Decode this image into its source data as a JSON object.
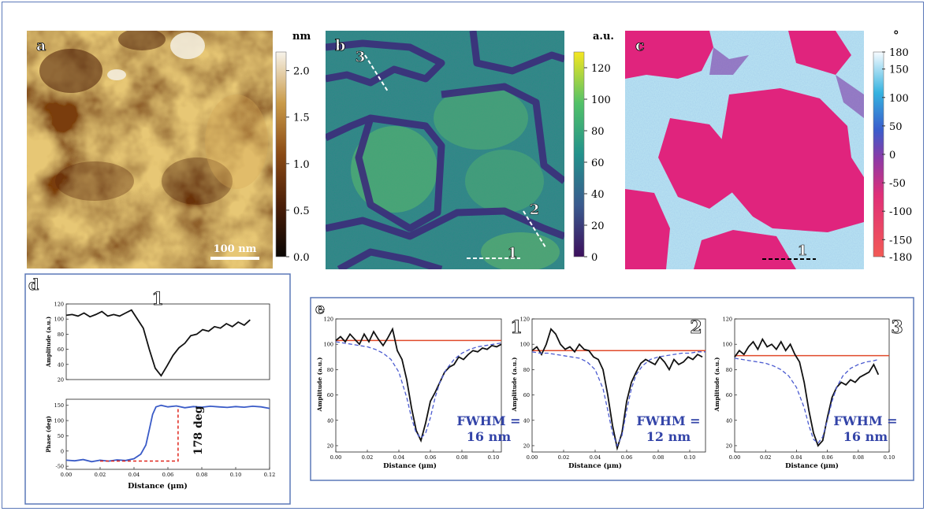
{
  "figure": {
    "panels": {
      "a": {
        "letter": "a",
        "unit": "nm",
        "colorbar_ticks": [
          "2.0",
          "1.5",
          "1.0",
          "0.5",
          "0.0"
        ],
        "colorbar_range": [
          0,
          2.2
        ],
        "scalebar": "100 nm"
      },
      "b": {
        "letter": "b",
        "unit": "a.u.",
        "colorbar_ticks": [
          "120",
          "100",
          "80",
          "60",
          "40",
          "20",
          "0"
        ],
        "colorbar_range": [
          0,
          130
        ],
        "line_labels": [
          "1",
          "2",
          "3"
        ]
      },
      "c": {
        "letter": "c",
        "unit": "°",
        "colorbar_ticks": [
          "180",
          "150",
          "100",
          "50",
          "0",
          "-50",
          "-100",
          "-150",
          "-180"
        ],
        "colorbar_range": [
          -180,
          180
        ],
        "line_labels": [
          "1"
        ]
      },
      "d": {
        "letter": "d",
        "profile_label": "1",
        "step_annotation": "178 deg",
        "xlabel": "Distance (μm)"
      },
      "e": {
        "letter": "e",
        "xlabel": "Distance (μm)",
        "ylabel": "Amplitude (a.u.)",
        "profiles": [
          {
            "label": "1",
            "fwhm_line1": "FWHM =",
            "fwhm_line2": "16 nm"
          },
          {
            "label": "2",
            "fwhm_line1": "FWHM =",
            "fwhm_line2": "12 nm"
          },
          {
            "label": "3",
            "fwhm_line1": "FWHM =",
            "fwhm_line2": "16 nm"
          }
        ]
      }
    },
    "colors": {
      "frame": "#5b78b8",
      "data_line": "#111111",
      "phase_line": "#3a5bc7",
      "reference_line": "#e04a2a",
      "fit_line": "#4b5bd0",
      "step_marker": "#e0241a",
      "fwhm_text": "#3344a8"
    }
  },
  "chart_data": [
    {
      "type": "line",
      "panel": "d-top",
      "xlabel": "",
      "ylabel": "Amplitude (a.u.)",
      "xlim": [
        0,
        0.12
      ],
      "ylim": [
        20,
        120
      ],
      "xticks": [],
      "yticks": [
        20,
        40,
        60,
        80,
        100,
        120
      ],
      "series": [
        {
          "x": [
            0,
            0.0035,
            0.007,
            0.0105,
            0.014,
            0.0175,
            0.021,
            0.0245,
            0.028,
            0.0315,
            0.035,
            0.0385,
            0.042,
            0.0455,
            0.049,
            0.0525,
            0.056,
            0.0595,
            0.063,
            0.0665,
            0.07,
            0.0735,
            0.077,
            0.0805,
            0.084,
            0.0875,
            0.091,
            0.0945,
            0.098,
            0.1015,
            0.105,
            0.1085
          ],
          "y": [
            105,
            106,
            104,
            108,
            103,
            106,
            110,
            104,
            106,
            104,
            108,
            112,
            100,
            88,
            60,
            35,
            25,
            38,
            52,
            62,
            68,
            78,
            80,
            86,
            84,
            90,
            88,
            94,
            90,
            96,
            92,
            99
          ]
        }
      ]
    },
    {
      "type": "line",
      "panel": "d-bottom",
      "xlabel": "Distance (μm)",
      "ylabel": "Phase (deg)",
      "xlim": [
        0,
        0.12
      ],
      "ylim": [
        -60,
        170
      ],
      "xticks": [
        0.0,
        0.02,
        0.04,
        0.06,
        0.08,
        0.1,
        0.12
      ],
      "yticks": [
        -50,
        0,
        50,
        100,
        150
      ],
      "series": [
        {
          "x": [
            0,
            0.005,
            0.01,
            0.015,
            0.02,
            0.025,
            0.03,
            0.035,
            0.04,
            0.044,
            0.047,
            0.049,
            0.051,
            0.053,
            0.056,
            0.06,
            0.065,
            0.07,
            0.075,
            0.08,
            0.085,
            0.09,
            0.095,
            0.1,
            0.105,
            0.11,
            0.115,
            0.12
          ],
          "y": [
            -30,
            -32,
            -28,
            -35,
            -30,
            -33,
            -29,
            -31,
            -25,
            -10,
            20,
            70,
            120,
            145,
            150,
            145,
            148,
            142,
            146,
            144,
            147,
            145,
            143,
            146,
            144,
            147,
            145,
            140
          ]
        }
      ]
    },
    {
      "type": "line",
      "panel": "e-1",
      "xlabel": "Distance (μm)",
      "ylabel": "Amplitude (a.u.)",
      "xlim": [
        0,
        0.105
      ],
      "ylim": [
        15,
        120
      ],
      "xticks": [
        0.0,
        0.02,
        0.04,
        0.06,
        0.08,
        0.1
      ],
      "yticks": [
        20,
        40,
        60,
        80,
        100,
        120
      ],
      "reference_y": 103,
      "fit_center": 0.054,
      "series": [
        {
          "x": [
            0,
            0.003,
            0.006,
            0.009,
            0.012,
            0.015,
            0.018,
            0.021,
            0.024,
            0.027,
            0.03,
            0.033,
            0.036,
            0.039,
            0.042,
            0.045,
            0.048,
            0.051,
            0.054,
            0.057,
            0.06,
            0.063,
            0.066,
            0.069,
            0.072,
            0.075,
            0.078,
            0.081,
            0.084,
            0.087,
            0.09,
            0.093,
            0.096,
            0.099,
            0.102,
            0.105
          ],
          "y": [
            103,
            106,
            102,
            108,
            104,
            100,
            108,
            102,
            110,
            104,
            99,
            105,
            112,
            95,
            88,
            72,
            50,
            32,
            24,
            38,
            55,
            62,
            70,
            78,
            82,
            84,
            90,
            88,
            92,
            95,
            94,
            97,
            96,
            99,
            98,
            100
          ]
        },
        {
          "x": [
            0,
            0.005,
            0.01,
            0.015,
            0.02,
            0.025,
            0.03,
            0.035,
            0.04,
            0.045,
            0.048,
            0.051,
            0.054,
            0.057,
            0.06,
            0.063,
            0.066,
            0.07,
            0.075,
            0.08,
            0.085,
            0.09,
            0.095,
            0.1,
            0.105
          ],
          "y": [
            102,
            101,
            100,
            99,
            98,
            96,
            93,
            88,
            78,
            58,
            42,
            30,
            26,
            30,
            42,
            58,
            70,
            80,
            88,
            93,
            96,
            98,
            99,
            100,
            101
          ]
        }
      ]
    },
    {
      "type": "line",
      "panel": "e-2",
      "xlabel": "Distance (μm)",
      "ylabel": "Amplitude (a.u.)",
      "xlim": [
        0,
        0.11
      ],
      "ylim": [
        15,
        120
      ],
      "xticks": [
        0.0,
        0.02,
        0.04,
        0.06,
        0.08,
        0.1
      ],
      "yticks": [
        20,
        40,
        60,
        80,
        100,
        120
      ],
      "reference_y": 95,
      "fit_center": 0.055,
      "series": [
        {
          "x": [
            0,
            0.003,
            0.006,
            0.009,
            0.012,
            0.015,
            0.018,
            0.021,
            0.024,
            0.027,
            0.03,
            0.033,
            0.036,
            0.039,
            0.042,
            0.045,
            0.048,
            0.051,
            0.054,
            0.057,
            0.06,
            0.063,
            0.066,
            0.069,
            0.072,
            0.075,
            0.078,
            0.081,
            0.084,
            0.087,
            0.09,
            0.093,
            0.096,
            0.099,
            0.102,
            0.105,
            0.108
          ],
          "y": [
            95,
            98,
            92,
            100,
            112,
            108,
            100,
            96,
            98,
            94,
            100,
            96,
            95,
            90,
            88,
            80,
            60,
            36,
            18,
            30,
            55,
            70,
            78,
            85,
            88,
            86,
            84,
            90,
            86,
            80,
            88,
            84,
            86,
            90,
            88,
            92,
            90
          ]
        },
        {
          "x": [
            0,
            0.005,
            0.01,
            0.015,
            0.02,
            0.025,
            0.03,
            0.035,
            0.04,
            0.045,
            0.048,
            0.051,
            0.054,
            0.057,
            0.06,
            0.063,
            0.066,
            0.07,
            0.075,
            0.08,
            0.085,
            0.09,
            0.095,
            0.1,
            0.105,
            0.11
          ],
          "y": [
            94,
            93,
            93,
            92,
            91,
            90,
            89,
            86,
            80,
            65,
            48,
            30,
            20,
            28,
            48,
            65,
            76,
            83,
            88,
            90,
            91,
            92,
            93,
            93,
            94,
            94
          ]
        }
      ]
    },
    {
      "type": "line",
      "panel": "e-3",
      "xlabel": "Distance (μm)",
      "ylabel": "Amplitude (a.u.)",
      "xlim": [
        0,
        0.1
      ],
      "ylim": [
        15,
        120
      ],
      "xticks": [
        0.0,
        0.02,
        0.04,
        0.06,
        0.08,
        0.1
      ],
      "yticks": [
        20,
        40,
        60,
        80,
        100,
        120
      ],
      "reference_y": 91,
      "fit_center": 0.054,
      "series": [
        {
          "x": [
            0,
            0.003,
            0.006,
            0.009,
            0.012,
            0.015,
            0.018,
            0.021,
            0.024,
            0.027,
            0.03,
            0.033,
            0.036,
            0.039,
            0.042,
            0.045,
            0.048,
            0.051,
            0.054,
            0.057,
            0.06,
            0.063,
            0.066,
            0.069,
            0.072,
            0.075,
            0.078,
            0.081,
            0.084,
            0.087,
            0.09,
            0.093
          ],
          "y": [
            90,
            95,
            92,
            98,
            102,
            96,
            104,
            98,
            100,
            96,
            102,
            95,
            100,
            92,
            86,
            70,
            48,
            30,
            20,
            24,
            42,
            58,
            66,
            70,
            68,
            72,
            70,
            74,
            76,
            78,
            84,
            76
          ]
        },
        {
          "x": [
            0,
            0.005,
            0.01,
            0.015,
            0.02,
            0.025,
            0.03,
            0.035,
            0.04,
            0.045,
            0.048,
            0.051,
            0.054,
            0.057,
            0.06,
            0.063,
            0.066,
            0.07,
            0.075,
            0.08,
            0.085,
            0.09,
            0.093
          ],
          "y": [
            89,
            88,
            87,
            86,
            85,
            83,
            80,
            75,
            66,
            50,
            36,
            25,
            22,
            27,
            40,
            55,
            66,
            75,
            81,
            84,
            86,
            87,
            88
          ]
        }
      ]
    }
  ]
}
